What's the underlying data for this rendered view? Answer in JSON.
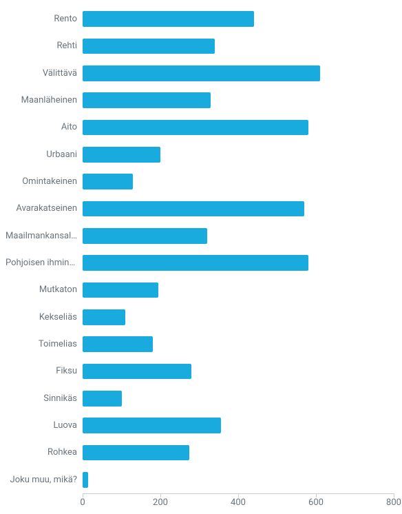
{
  "chart": {
    "type": "bar",
    "orientation": "horizontal",
    "background_color": "#ffffff",
    "bar_color": "#1aabde",
    "label_color": "#6a737b",
    "tick_label_color": "#6a737b",
    "axis_line_color": "#cccccc",
    "label_fontsize": 13,
    "tick_fontsize": 13,
    "xlim": [
      0,
      800
    ],
    "xtick_step": 200,
    "xticks": [
      0,
      200,
      400,
      600,
      800
    ],
    "bar_height_ratio": 0.58,
    "categories": [
      "Rento",
      "Rehti",
      "Välittävä",
      "Maanläheinen",
      "Aito",
      "Urbaani",
      "Omintakeinen",
      "Avarakatseinen",
      "Maailmankansal…",
      "Pohjoisen ihminen",
      "Mutkaton",
      "Kekseliäs",
      "Toimelias",
      "Fiksu",
      "Sinnikäs",
      "Luova",
      "Rohkea",
      "Joku muu, mikä?"
    ],
    "values": [
      440,
      340,
      610,
      330,
      580,
      200,
      130,
      570,
      320,
      580,
      195,
      110,
      180,
      280,
      100,
      355,
      275,
      15
    ]
  }
}
